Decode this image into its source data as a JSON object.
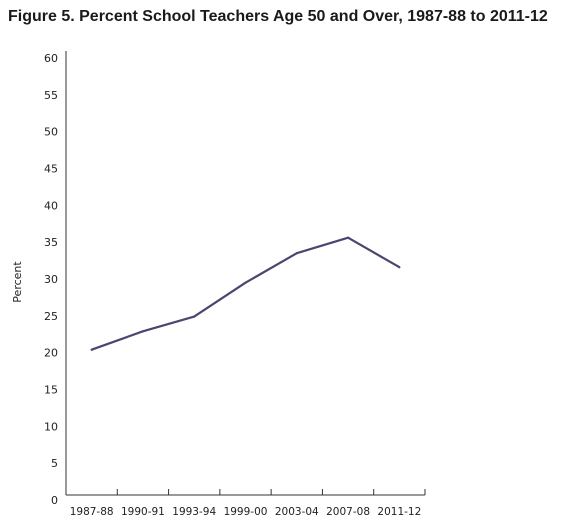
{
  "chart_data": {
    "type": "line",
    "title": "Figure 5. Percent School Teachers Age 50 and Over, 1987-88 to 2011-12",
    "xlabel": "",
    "ylabel": "Percent",
    "categories": [
      "1987-88",
      "1990-91",
      "1993-94",
      "1999-00",
      "2003-04",
      "2007-08",
      "2011-12"
    ],
    "y_ticks": [
      0,
      5,
      10,
      15,
      20,
      25,
      30,
      35,
      40,
      45,
      50,
      55,
      60
    ],
    "ylim": [
      0,
      60
    ],
    "grid": false,
    "series": [
      {
        "values": [
          20.4,
          22.9,
          24.9,
          29.5,
          33.5,
          35.6,
          31.6
        ],
        "color": "#4a4670"
      }
    ]
  }
}
